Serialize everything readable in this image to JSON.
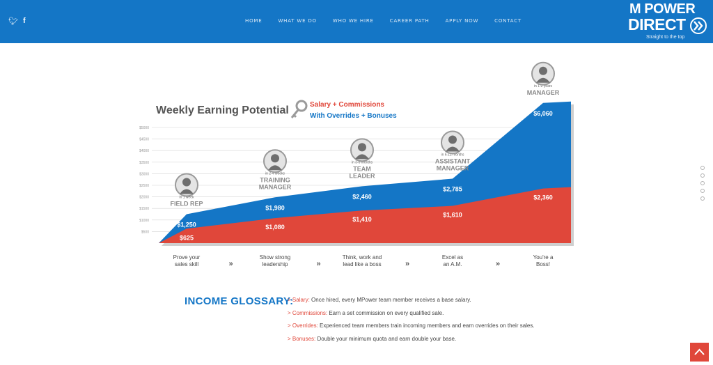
{
  "header": {
    "social": [
      {
        "icon": "twitter-icon",
        "glyph": "🐦︎"
      },
      {
        "icon": "facebook-icon",
        "glyph": "f"
      }
    ],
    "nav": [
      "HOME",
      "WHAT WE DO",
      "WHO WE HIRE",
      "CAREER PATH",
      "APPLY NOW",
      "CONTACT"
    ],
    "logo": {
      "line1": "M POWER",
      "line2": "DIRECT",
      "tagline": "Straight to the top"
    }
  },
  "chart": {
    "title": "Weekly Earning Potential",
    "legend": {
      "salary": "Salary + Commissions",
      "overrides": "With Overrides + Bonuses"
    },
    "y_ticks": [
      "$500",
      "$1000",
      "$1500",
      "$2000",
      "$2500",
      "$3000",
      "$3500",
      "$4000",
      "$4500",
      "$5000"
    ],
    "roles": [
      {
        "when": "in 1 week",
        "name": [
          "FIELD REP"
        ],
        "total": "$1,250",
        "base": "$625",
        "step": [
          "Prove your",
          "sales skill"
        ]
      },
      {
        "when": "in 2-4 weeks",
        "name": [
          "TRAINING",
          "MANAGER"
        ],
        "total": "$1,980",
        "base": "$1,080",
        "step": [
          "Show strong",
          "leadership"
        ]
      },
      {
        "when": "in 3-6 months",
        "name": [
          "TEAM",
          "LEADER"
        ],
        "total": "$2,460",
        "base": "$1,410",
        "step": [
          "Think, work and",
          "lead like a boss"
        ]
      },
      {
        "when": "in 6-12 months",
        "name": [
          "ASSISTANT",
          "MANAGER"
        ],
        "total": "$2,785",
        "base": "$1,610",
        "step": [
          "Excel as",
          "an A.M."
        ]
      },
      {
        "when": "in 1-2 years",
        "name": [
          "MANAGER"
        ],
        "total": "$6,060",
        "base": "$2,360",
        "step": [
          "You're a",
          "Boss!"
        ]
      }
    ],
    "colors": {
      "blue": "#1476c6",
      "red": "#e0473a",
      "gray": "#7a7a7a"
    }
  },
  "chart_data": {
    "type": "area",
    "title": "Weekly Earning Potential",
    "categories": [
      "FIELD REP",
      "TRAINING MANAGER",
      "TEAM LEADER",
      "ASSISTANT MANAGER",
      "MANAGER"
    ],
    "series": [
      {
        "name": "Salary + Commissions",
        "values": [
          625,
          1080,
          1410,
          1610,
          2360
        ]
      },
      {
        "name": "With Overrides + Bonuses",
        "values": [
          1250,
          1980,
          2460,
          2785,
          6060
        ]
      }
    ],
    "ylim": [
      0,
      5000
    ]
  },
  "glossary": {
    "title": "INCOME GLOSSARY:",
    "items": [
      {
        "term": "> Salary:",
        "text": " Once hired, every MPower team member receives a base salary."
      },
      {
        "term": "> Commissions:",
        "text": " Earn a set commission on every qualified sale."
      },
      {
        "term": "> Overrides:",
        "text": " Experienced team members train incoming members and earn overrides on their sales."
      },
      {
        "term": "> Bonuses:",
        "text": " Double your minimum quota and earn double your base."
      }
    ]
  }
}
